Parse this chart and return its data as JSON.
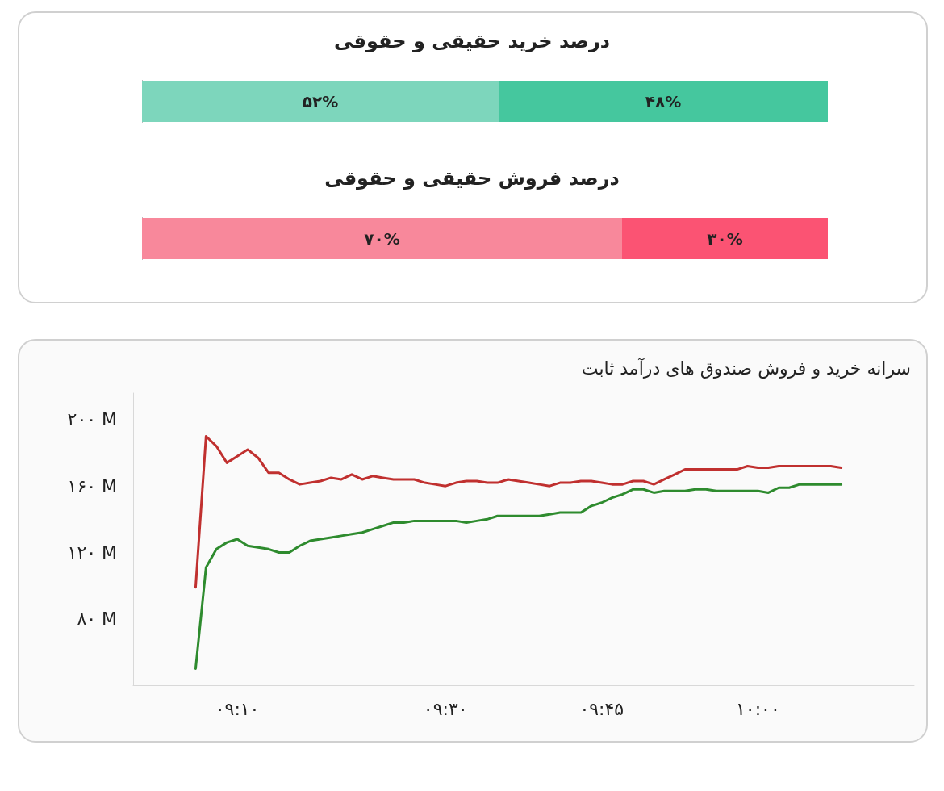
{
  "chart_data": [
    {
      "type": "bar",
      "title": "درصد خرید حقیقی و حقوقی",
      "orientation": "horizontal",
      "stacked": true,
      "categories": [
        null
      ],
      "xlim": [
        0,
        100
      ],
      "grid": false,
      "series": [
        {
          "color": "#7dd6bc",
          "values": [
            52
          ],
          "value_labels": [
            "۵۲%"
          ]
        },
        {
          "color": "#45c79e",
          "values": [
            48
          ],
          "value_labels": [
            "۴۸%"
          ]
        }
      ]
    },
    {
      "type": "bar",
      "title": "درصد فروش حقیقی و حقوقی",
      "orientation": "horizontal",
      "stacked": true,
      "categories": [
        null
      ],
      "xlim": [
        0,
        100
      ],
      "grid": false,
      "series": [
        {
          "color": "#f8889b",
          "values": [
            70
          ],
          "value_labels": [
            "۷۰%"
          ]
        },
        {
          "color": "#fb5373",
          "values": [
            30
          ],
          "value_labels": [
            "۳۰%"
          ]
        }
      ]
    },
    {
      "type": "line",
      "title": "سرانه خرید و فروش صندوق های درآمد ثابت",
      "grid": false,
      "marker": "none",
      "line_style": "solid",
      "xlim": [
        9,
        10.25
      ],
      "xticks": [
        {
          "value": 9.1667,
          "label": "۰۹:۱۰"
        },
        {
          "value": 9.5,
          "label": "۰۹:۳۰"
        },
        {
          "value": 9.75,
          "label": "۰۹:۴۵"
        },
        {
          "value": 10,
          "label": "۱۰:۰۰"
        }
      ],
      "ylim": [
        40,
        216
      ],
      "yticks": [
        {
          "value": 80,
          "label": "۸۰ M"
        },
        {
          "value": 120,
          "label": "۱۲۰ M"
        },
        {
          "value": 160,
          "label": "۱۶۰ M"
        },
        {
          "value": 200,
          "label": "۲۰۰ M"
        }
      ],
      "x": [
        9.1,
        9.1167,
        9.1333,
        9.15,
        9.1667,
        9.1833,
        9.2,
        9.2167,
        9.2333,
        9.25,
        9.2667,
        9.2833,
        9.3,
        9.3167,
        9.3333,
        9.35,
        9.3667,
        9.3833,
        9.4,
        9.4167,
        9.4333,
        9.45,
        9.4667,
        9.4833,
        9.5,
        9.5167,
        9.5333,
        9.55,
        9.5667,
        9.5833,
        9.6,
        9.6167,
        9.6333,
        9.65,
        9.6667,
        9.6833,
        9.7,
        9.7167,
        9.7333,
        9.75,
        9.7667,
        9.7833,
        9.8,
        9.8167,
        9.8333,
        9.85,
        9.8667,
        9.8833,
        9.9,
        9.9167,
        9.9333,
        9.95,
        9.9667,
        9.9833,
        10,
        10.0167,
        10.0333,
        10.05,
        10.0667,
        10.0833,
        10.1,
        10.1167,
        10.1333
      ],
      "series": [
        {
          "color": "#c0302f",
          "values": [
            99,
            190,
            184,
            174,
            178,
            182,
            177,
            168,
            168,
            164,
            161,
            162,
            163,
            165,
            164,
            167,
            164,
            166,
            165,
            164,
            164,
            164,
            162,
            161,
            160,
            162,
            163,
            163,
            162,
            162,
            164,
            163,
            162,
            161,
            160,
            162,
            162,
            163,
            163,
            162,
            161,
            161,
            163,
            163,
            161,
            164,
            167,
            170,
            170,
            170,
            170,
            170,
            170,
            172,
            171,
            171,
            172,
            172,
            172,
            172,
            172,
            172,
            171
          ]
        },
        {
          "color": "#2e8b2e",
          "values": [
            50,
            111,
            122,
            126,
            128,
            124,
            123,
            122,
            120,
            120,
            124,
            127,
            128,
            129,
            130,
            131,
            132,
            134,
            136,
            138,
            138,
            139,
            139,
            139,
            139,
            139,
            138,
            139,
            140,
            142,
            142,
            142,
            142,
            142,
            143,
            144,
            144,
            144,
            148,
            150,
            153,
            155,
            158,
            158,
            156,
            157,
            157,
            157,
            158,
            158,
            157,
            157,
            157,
            157,
            157,
            156,
            159,
            159,
            161,
            161,
            161,
            161,
            161
          ]
        }
      ]
    }
  ]
}
